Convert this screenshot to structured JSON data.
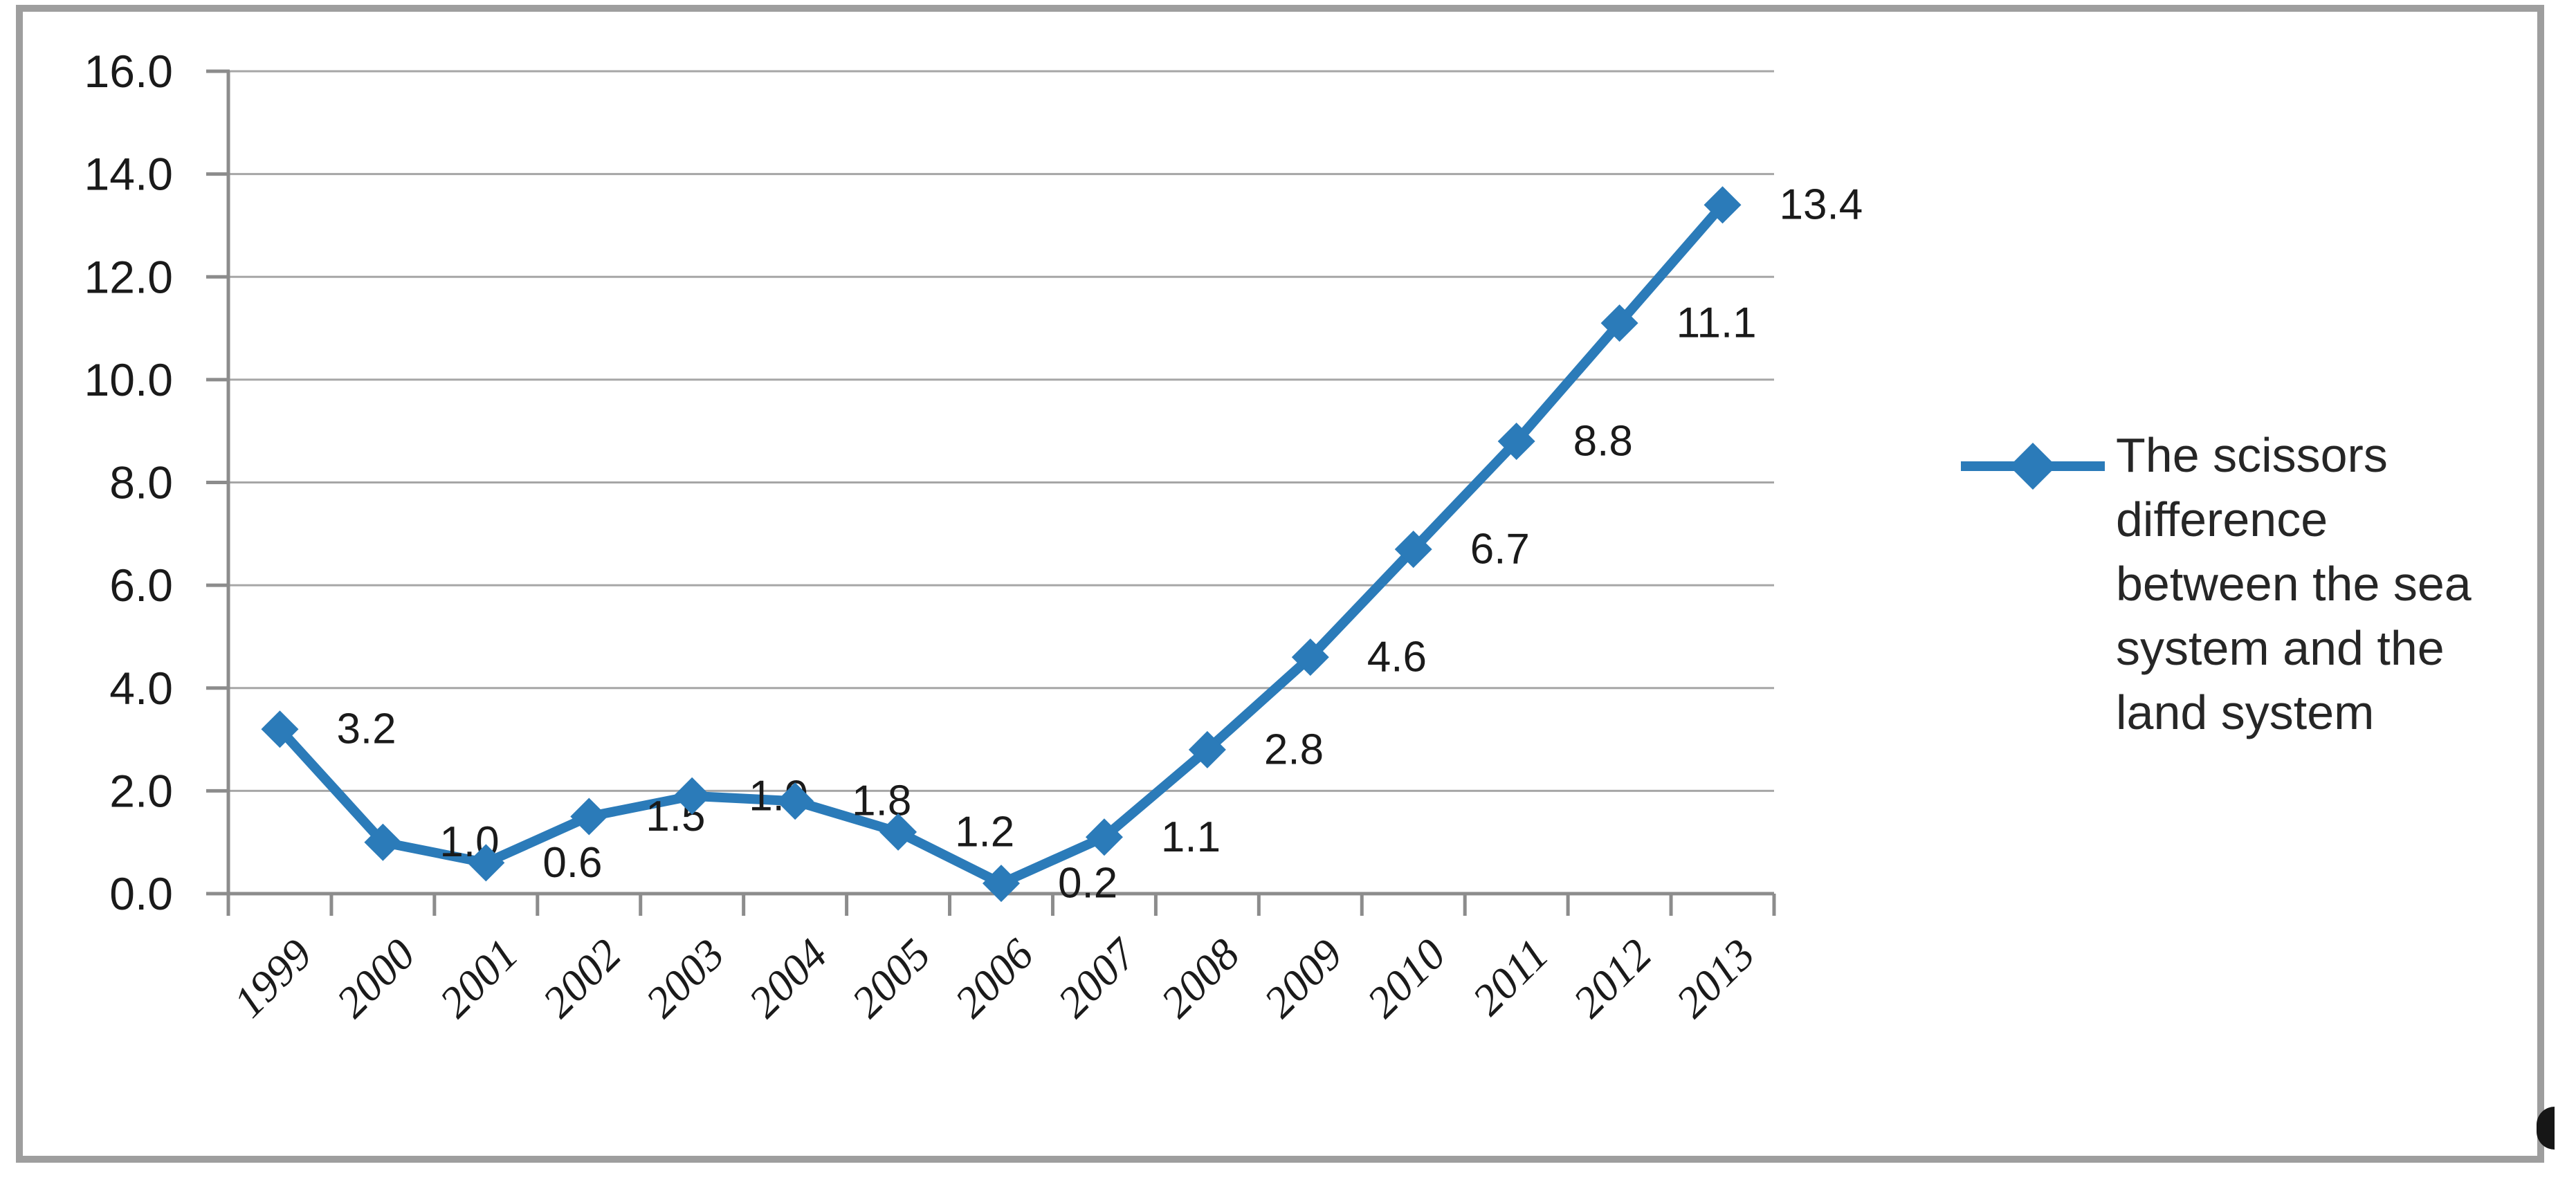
{
  "chart_data": {
    "type": "line",
    "title": "",
    "categories": [
      "1999",
      "2000",
      "2001",
      "2002",
      "2003",
      "2004",
      "2005",
      "2006",
      "2007",
      "2008",
      "2009",
      "2010",
      "2011",
      "2012",
      "2013"
    ],
    "series": [
      {
        "name": "The scissors difference between the sea system and the land system",
        "values": [
          3.2,
          1.0,
          0.6,
          1.5,
          1.9,
          1.8,
          1.2,
          0.2,
          1.1,
          2.8,
          4.6,
          6.7,
          8.8,
          11.1,
          13.4
        ],
        "data_labels": [
          "3.2",
          "1.0",
          "0.6",
          "1.5",
          "1.9",
          "1.8",
          "1.2",
          "0.2",
          "1.1",
          "2.8",
          "4.6",
          "6.7",
          "8.8",
          "11.1",
          "13.4"
        ]
      }
    ],
    "xlabel": "",
    "ylabel": "",
    "ylim": [
      0,
      16
    ],
    "ytick_step": 2,
    "ytick_labels": [
      "0.0",
      "2.0",
      "4.0",
      "6.0",
      "8.0",
      "10.0",
      "12.0",
      "14.0",
      "16.0"
    ],
    "grid": true,
    "legend_position": "right",
    "marker": "diamond"
  },
  "legend": {
    "label": "The scissors difference between the sea system and the land system",
    "lines": [
      "The scissors",
      "difference",
      "between the sea",
      "system and the",
      "land system"
    ]
  },
  "colors": {
    "series": "#2B7BB9",
    "grid": "#A6A6A6",
    "axis": "#8C8C8C",
    "frame": "#9E9E9E",
    "label_text": "#1A1A1A",
    "legend_text": "#262626"
  }
}
